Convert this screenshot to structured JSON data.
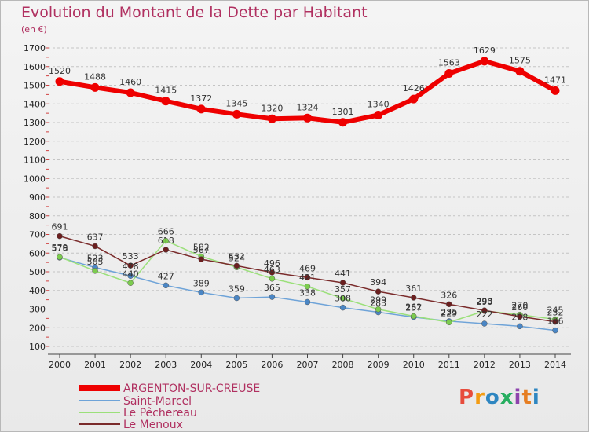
{
  "header": {
    "title": "Evolution du Montant de la Dette par Habitant",
    "subtitle": "(en €)"
  },
  "logo": {
    "text": "Proxiti",
    "colors": [
      "#e74c3c",
      "#f39c12",
      "#2e86c1",
      "#27ae60",
      "#8e44ad",
      "#e67e22",
      "#2e86c1"
    ]
  },
  "chart_data": {
    "type": "line",
    "title": "Evolution du Montant de la Dette par Habitant",
    "ylabel": "(en €)",
    "xlabel": "",
    "ylim": [
      100,
      1700
    ],
    "yticks": [
      100,
      200,
      300,
      400,
      500,
      600,
      700,
      800,
      900,
      1000,
      1100,
      1200,
      1300,
      1400,
      1500,
      1600,
      1700
    ],
    "grid": "horizontal-dashed",
    "legend": "bottom-left",
    "x": [
      "2000",
      "2001",
      "2002",
      "2003",
      "2004",
      "2005",
      "2006",
      "2007",
      "2008",
      "2009",
      "2010",
      "2011",
      "2012",
      "2013",
      "2014"
    ],
    "series": [
      {
        "name": "ARGENTON-SUR-CREUSE",
        "color": "#ee0000",
        "marker": "#ee0000",
        "width": 6,
        "values": [
          1520,
          1488,
          1460,
          1415,
          1372,
          1345,
          1320,
          1324,
          1301,
          1340,
          1426,
          1563,
          1629,
          1575,
          1471
        ],
        "labels": [
          "1520",
          "1488",
          "1460",
          "1415",
          "1372",
          "1345",
          "1320",
          "1324",
          "1301",
          "1340",
          "1426",
          "1563",
          "1629",
          "1575",
          "1471"
        ]
      },
      {
        "name": "Saint-Marcel",
        "color": "#6ea3d8",
        "marker": "#4a86c5",
        "width": 1.5,
        "values": [
          576,
          523,
          478,
          427,
          389,
          359,
          365,
          338,
          308,
          283,
          257,
          235,
          222,
          208,
          186
        ],
        "labels": [
          "576",
          "523",
          "478",
          "427",
          "389",
          "359",
          "365",
          "338",
          "308",
          "283",
          "257",
          "235",
          "222",
          "208",
          "186"
        ]
      },
      {
        "name": "Le Pêchereau",
        "color": "#9be07a",
        "marker": "#7ccc4e",
        "width": 1.5,
        "values": [
          579,
          505,
          440,
          666,
          582,
          524,
          463,
          421,
          357,
          299,
          262,
          229,
          290,
          270,
          245
        ],
        "labels": [
          "579",
          "505",
          "440",
          "666",
          "582",
          "524",
          "463",
          "421",
          "357",
          "299",
          "262",
          "229",
          "290",
          "270",
          "245"
        ]
      },
      {
        "name": "Le Menoux",
        "color": "#7a2b2b",
        "marker": "#6b1f1f",
        "width": 1.5,
        "values": [
          691,
          637,
          533,
          618,
          567,
          532,
          496,
          469,
          441,
          394,
          361,
          326,
          293,
          260,
          232
        ],
        "labels": [
          "691",
          "637",
          "533",
          "618",
          "567",
          "532",
          "496",
          "469",
          "441",
          "394",
          "361",
          "326",
          "293",
          "260",
          "232"
        ]
      }
    ]
  }
}
